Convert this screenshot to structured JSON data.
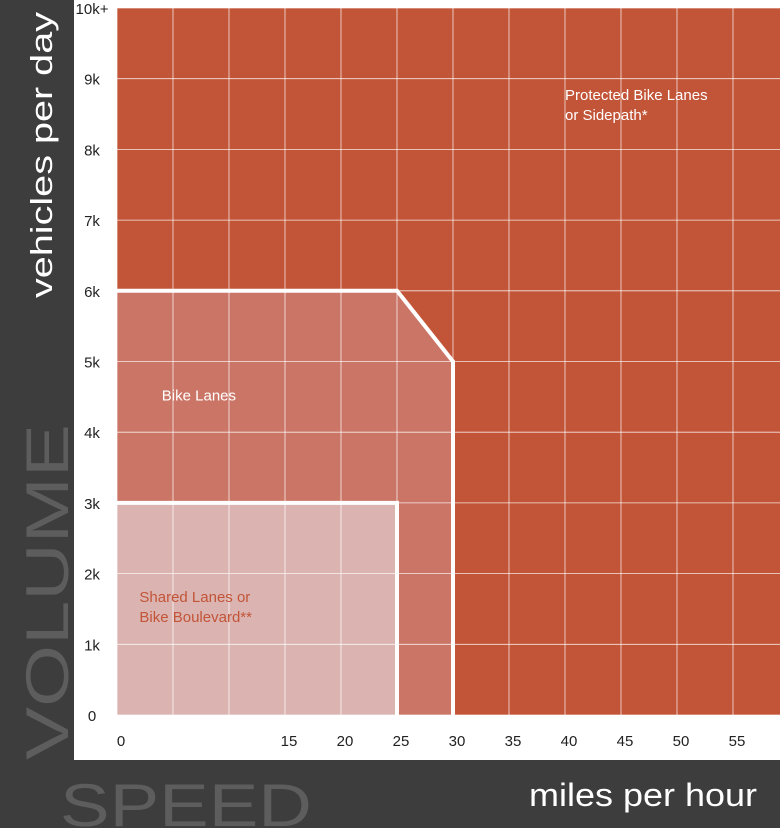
{
  "chart_data": {
    "type": "area",
    "title": "",
    "xlabel": "miles per hour",
    "ylabel": "vehicles per day",
    "xlabel_big": "SPEED",
    "ylabel_big": "VOLUME",
    "xlim": [
      0,
      60
    ],
    "ylim": [
      0,
      10000
    ],
    "x_ticks": [
      0,
      5,
      10,
      15,
      20,
      25,
      30,
      35,
      40,
      45,
      50,
      55
    ],
    "x_tick_labels": [
      "0",
      "15",
      "20",
      "25",
      "30",
      "35",
      "40",
      "45",
      "50",
      "55"
    ],
    "x_tick_label_values": [
      0,
      15,
      20,
      25,
      30,
      35,
      40,
      45,
      50,
      55
    ],
    "y_ticks": [
      0,
      1000,
      2000,
      3000,
      4000,
      5000,
      6000,
      7000,
      8000,
      9000,
      10000
    ],
    "y_tick_labels": [
      "0",
      "1k",
      "2k",
      "3k",
      "4k",
      "5k",
      "6k",
      "7k",
      "8k",
      "9k",
      "10k+"
    ],
    "grid": true,
    "regions": [
      {
        "lines": [
          "Protected Bike Lanes",
          "or Sidepath*"
        ],
        "color": "#c25437",
        "label_color": "#ffffff",
        "boundary": [
          [
            0,
            0
          ],
          [
            60,
            0
          ],
          [
            60,
            10000
          ],
          [
            0,
            10000
          ]
        ],
        "label_anchor": [
          40,
          8700
        ]
      },
      {
        "lines": [
          "Bike Lanes"
        ],
        "color": "#cb7566",
        "label_color": "#ffffff",
        "boundary": [
          [
            0,
            0
          ],
          [
            30,
            0
          ],
          [
            30,
            5000
          ],
          [
            25,
            6000
          ],
          [
            0,
            6000
          ]
        ],
        "label_anchor": [
          4,
          4450
        ]
      },
      {
        "lines": [
          "Shared Lanes or",
          "Bike Boulevard**"
        ],
        "color": "#dbb4b1",
        "label_color": "#c25437",
        "boundary": [
          [
            0,
            0
          ],
          [
            25,
            0
          ],
          [
            25,
            3000
          ],
          [
            0,
            3000
          ]
        ],
        "label_anchor": [
          2,
          1600
        ]
      }
    ]
  },
  "colors": {
    "axis_bar": "#3d3d3d",
    "big_label": "#5d5d5d",
    "grid": "#ffffff",
    "boundary": "#ffffff"
  }
}
